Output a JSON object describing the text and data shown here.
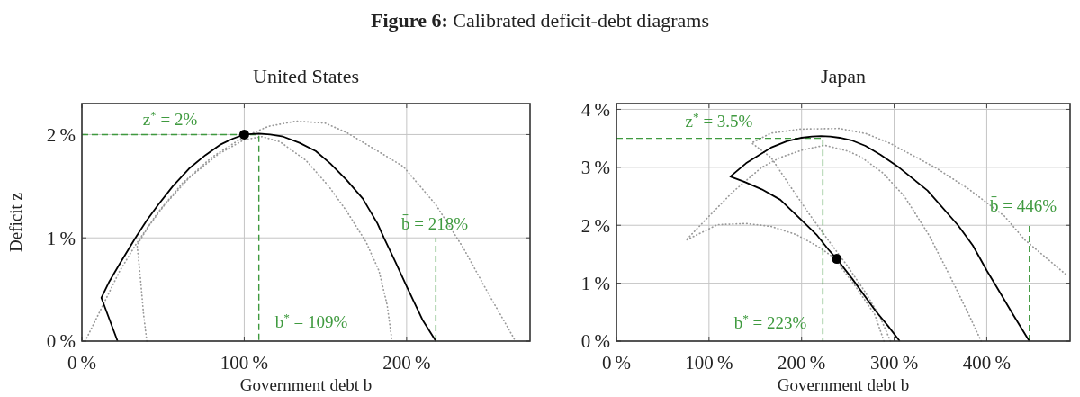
{
  "chart_data": [
    {
      "type": "line",
      "title": "United States",
      "xlabel": "Government debt b",
      "ylabel": "Deficit z",
      "annotations": [
        "Figure 6: Calibrated deficit-debt diagrams",
        "z$^{*}$ = 2%",
        "b$^{*}$ = 109%",
        "b̄ = 218%"
      ],
      "xlim": [
        0,
        276
      ],
      "ylim": [
        0,
        2.3
      ],
      "xticks": [
        {
          "value": 0,
          "label": "0 %"
        },
        {
          "value": 100,
          "label": "100 %"
        },
        {
          "value": 200,
          "label": "200 %"
        }
      ],
      "yticks": [
        {
          "value": 0,
          "label": "0 %"
        },
        {
          "value": 1,
          "label": "1 %"
        },
        {
          "value": 2,
          "label": "2 %"
        }
      ],
      "grid": true,
      "series": [
        {
          "color": "#9a9a9a",
          "line_style": "dotted",
          "x": [
            2,
            13,
            23,
            33,
            47,
            62,
            80,
            100,
            115,
            132,
            150,
            163,
            179,
            198,
            218,
            235,
            250,
            262,
            267
          ],
          "values": [
            0,
            0.35,
            0.67,
            0.93,
            1.25,
            1.53,
            1.78,
            1.98,
            2.08,
            2.13,
            2.11,
            2.02,
            1.87,
            1.69,
            1.32,
            0.9,
            0.47,
            0.14,
            0
          ]
        },
        {
          "color": "#9a9a9a",
          "line_style": "dotted",
          "x": [
            40,
            38,
            36,
            34,
            41,
            51,
            66,
            84,
            100,
            111,
            122,
            138,
            152,
            163,
            175,
            183,
            188,
            191
          ],
          "values": [
            0,
            0.26,
            0.62,
            0.93,
            1.11,
            1.32,
            1.58,
            1.81,
            1.95,
            1.98,
            1.93,
            1.75,
            1.5,
            1.26,
            0.96,
            0.68,
            0.35,
            0
          ]
        },
        {
          "color": "#3f9a3f",
          "line_style": "dashed",
          "x": [
            0,
            109,
            109
          ],
          "values": [
            2,
            2,
            0
          ]
        },
        {
          "color": "#3f9a3f",
          "line_style": "dashed",
          "x": [
            218,
            218
          ],
          "values": [
            0,
            1
          ]
        },
        {
          "color": "#000000",
          "line_style": "solid",
          "x": [
            22,
            12,
            17,
            23,
            33,
            40,
            47,
            56,
            66,
            76,
            85,
            93,
            100,
            109,
            116,
            124,
            134,
            144,
            153,
            163,
            173,
            182,
            186,
            193,
            200,
            210,
            218
          ],
          "values": [
            0,
            0.42,
            0.58,
            0.74,
            1,
            1.17,
            1.32,
            1.5,
            1.67,
            1.8,
            1.9,
            1.96,
            2,
            2.01,
            2,
            1.98,
            1.92,
            1.84,
            1.72,
            1.56,
            1.38,
            1.14,
            1,
            0.77,
            0.53,
            0.2,
            0
          ]
        },
        {
          "type": "scatter",
          "marker": "circle",
          "color": "#000000",
          "x": [
            100
          ],
          "values": [
            2
          ]
        }
      ]
    },
    {
      "type": "line",
      "title": "Japan",
      "xlabel": "Government debt b",
      "annotations": [
        "z$^{*}$ = 3.5%",
        "b$^{*}$ = 223%",
        "b̄ = 446%"
      ],
      "xlim": [
        0,
        490
      ],
      "ylim": [
        0,
        4.1
      ],
      "xticks": [
        {
          "value": 0,
          "label": "0 %"
        },
        {
          "value": 100,
          "label": "100 %"
        },
        {
          "value": 200,
          "label": "200 %"
        },
        {
          "value": 300,
          "label": "300 %"
        },
        {
          "value": 400,
          "label": "400 %"
        }
      ],
      "yticks": [
        {
          "value": 0,
          "label": "0 %"
        },
        {
          "value": 1,
          "label": "1 %"
        },
        {
          "value": 2,
          "label": "2 %"
        },
        {
          "value": 3,
          "label": "3 %"
        },
        {
          "value": 4,
          "label": "4 %"
        }
      ],
      "grid": true,
      "series": [
        {
          "color": "#9a9a9a",
          "line_style": "dotted",
          "x": [
            296,
            285,
            269,
            248,
            228,
            208,
            187,
            167,
            146,
            167,
            199,
            241,
            270,
            296,
            345,
            380,
            419,
            441,
            487
          ],
          "values": [
            0,
            0.41,
            0.84,
            1.33,
            1.76,
            2.2,
            2.69,
            3.17,
            3.42,
            3.59,
            3.66,
            3.67,
            3.58,
            3.41,
            2.99,
            2.63,
            2.16,
            1.75,
            1.13
          ]
        },
        {
          "color": "#9a9a9a",
          "line_style": "dotted",
          "x": [
            289,
            279,
            258,
            235,
            218,
            194,
            167,
            140,
            109,
            75,
            99,
            126,
            157,
            177,
            201,
            225,
            250,
            264,
            288,
            311,
            338,
            361,
            380,
            394
          ],
          "values": [
            0,
            0.46,
            0.95,
            1.44,
            1.63,
            1.84,
            1.98,
            2.03,
            2.01,
            1.74,
            2.14,
            2.58,
            3,
            3.17,
            3.3,
            3.38,
            3.28,
            3.18,
            2.9,
            2.5,
            1.82,
            1.1,
            0.48,
            0
          ]
        },
        {
          "color": "#3f9a3f",
          "line_style": "dashed",
          "x": [
            0,
            223,
            223
          ],
          "values": [
            3.5,
            3.5,
            0
          ]
        },
        {
          "color": "#3f9a3f",
          "line_style": "dashed",
          "x": [
            446,
            446
          ],
          "values": [
            0,
            2
          ]
        },
        {
          "color": "#000000",
          "line_style": "solid",
          "x": [
            306,
            293,
            280,
            255,
            238,
            229,
            216,
            196,
            177,
            157,
            138,
            123,
            140,
            167,
            184,
            200,
            211,
            221,
            231,
            241,
            255,
            269,
            285,
            305,
            336,
            369,
            385,
            400,
            412,
            428,
            446
          ],
          "values": [
            0,
            0.27,
            0.52,
            1.07,
            1.42,
            1.58,
            1.84,
            2.15,
            2.44,
            2.62,
            2.75,
            2.84,
            3.07,
            3.34,
            3.45,
            3.51,
            3.53,
            3.54,
            3.53,
            3.51,
            3.46,
            3.37,
            3.22,
            3,
            2.6,
            2,
            1.65,
            1.22,
            0.9,
            0.47,
            0
          ]
        },
        {
          "type": "scatter",
          "marker": "circle",
          "color": "#000000",
          "x": [
            238
          ],
          "values": [
            1.42
          ]
        }
      ]
    }
  ]
}
